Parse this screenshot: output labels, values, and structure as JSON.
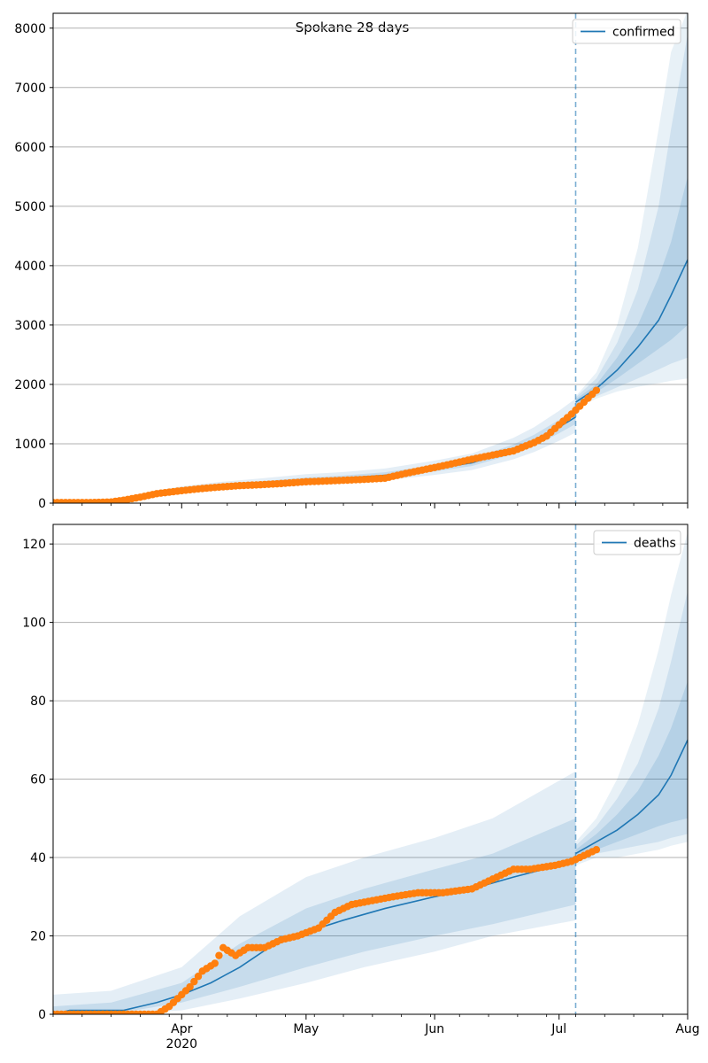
{
  "figure": {
    "title": "Spokane 28 days",
    "colors": {
      "model_line": "#1f77b4",
      "observed_points": "#ff7f0e",
      "band": "#1f77b4",
      "forecast_marker": "#1f77b4",
      "grid": "#b0b0b0"
    },
    "x_axis": {
      "range": [
        "2020-03-01",
        "2020-08-01"
      ],
      "major_ticks": [
        {
          "date": "2020-04-01",
          "label": "Apr",
          "sublabel": "2020"
        },
        {
          "date": "2020-05-01",
          "label": "May",
          "sublabel": ""
        },
        {
          "date": "2020-06-01",
          "label": "Jun",
          "sublabel": ""
        },
        {
          "date": "2020-07-01",
          "label": "Jul",
          "sublabel": ""
        },
        {
          "date": "2020-08-01",
          "label": "Aug",
          "sublabel": ""
        }
      ],
      "forecast_start": "2020-07-05"
    }
  },
  "chart_data": [
    {
      "type": "line",
      "panel": "top",
      "legend": {
        "label": "confirmed",
        "placement": "top-right"
      },
      "ylim": [
        0,
        8250
      ],
      "yticks": [
        0,
        1000,
        2000,
        3000,
        4000,
        5000,
        6000,
        7000,
        8000
      ],
      "grid": "y",
      "fit": {
        "dates": [
          "2020-03-01",
          "2020-03-10",
          "2020-03-15",
          "2020-03-20",
          "2020-03-25",
          "2020-04-01",
          "2020-04-10",
          "2020-04-20",
          "2020-05-01",
          "2020-05-10",
          "2020-05-20",
          "2020-06-01",
          "2020-06-10",
          "2020-06-20",
          "2020-06-25",
          "2020-07-01",
          "2020-07-05"
        ],
        "values": [
          0,
          5,
          20,
          60,
          150,
          220,
          280,
          330,
          390,
          420,
          470,
          580,
          680,
          900,
          1050,
          1280,
          1450
        ]
      },
      "forecast": {
        "dates": [
          "2020-07-05",
          "2020-07-10",
          "2020-07-15",
          "2020-07-20",
          "2020-07-25",
          "2020-07-28",
          "2020-08-01"
        ],
        "median": [
          1700,
          1930,
          2240,
          2630,
          3080,
          3500,
          4100
        ],
        "band50": [
          [
            1650,
            1870,
            2100,
            2350,
            2600,
            2750,
            3000
          ],
          [
            1750,
            2000,
            2450,
            3000,
            3800,
            4400,
            5500
          ]
        ],
        "band80": [
          [
            1620,
            1800,
            1950,
            2100,
            2250,
            2350,
            2450
          ],
          [
            1780,
            2100,
            2700,
            3600,
            5000,
            6300,
            7900
          ]
        ],
        "band95": [
          [
            1600,
            1760,
            1880,
            1960,
            2020,
            2060,
            2100
          ],
          [
            1800,
            2200,
            3000,
            4300,
            6300,
            7600,
            8300
          ]
        ]
      },
      "observed": {
        "dates": [
          "2020-03-01",
          "2020-03-10",
          "2020-03-15",
          "2020-03-18",
          "2020-03-22",
          "2020-03-26",
          "2020-04-01",
          "2020-04-05",
          "2020-04-10",
          "2020-04-15",
          "2020-04-20",
          "2020-04-25",
          "2020-05-01",
          "2020-05-05",
          "2020-05-10",
          "2020-05-15",
          "2020-05-20",
          "2020-05-25",
          "2020-06-01",
          "2020-06-05",
          "2020-06-10",
          "2020-06-15",
          "2020-06-20",
          "2020-06-25",
          "2020-06-28",
          "2020-07-01",
          "2020-07-04",
          "2020-07-07",
          "2020-07-10"
        ],
        "values": [
          10,
          10,
          20,
          50,
          100,
          160,
          210,
          240,
          270,
          295,
          310,
          330,
          360,
          370,
          385,
          400,
          420,
          500,
          600,
          660,
          740,
          810,
          880,
          1020,
          1130,
          1320,
          1500,
          1700,
          1900
        ]
      }
    },
    {
      "type": "line",
      "panel": "bottom",
      "legend": {
        "label": "deaths",
        "placement": "top-right"
      },
      "ylim": [
        0,
        125
      ],
      "yticks": [
        0,
        20,
        40,
        60,
        80,
        100,
        120
      ],
      "grid": "y",
      "fit": {
        "dates": [
          "2020-03-01",
          "2020-03-05",
          "2020-03-18",
          "2020-03-22",
          "2020-03-26",
          "2020-04-01",
          "2020-04-08",
          "2020-04-15",
          "2020-04-22",
          "2020-05-01",
          "2020-05-10",
          "2020-05-20",
          "2020-06-01",
          "2020-06-10",
          "2020-06-20",
          "2020-07-01",
          "2020-07-05"
        ],
        "values": [
          0,
          1,
          1,
          2,
          3,
          5,
          8,
          12,
          17,
          21,
          24,
          27,
          30,
          32,
          35,
          38,
          40
        ]
      },
      "forecast": {
        "dates": [
          "2020-07-05",
          "2020-07-10",
          "2020-07-15",
          "2020-07-20",
          "2020-07-25",
          "2020-07-28",
          "2020-08-01"
        ],
        "median": [
          41,
          44,
          47,
          51,
          56,
          61,
          70
        ],
        "band50": [
          [
            40,
            42,
            44,
            46,
            48,
            49,
            50
          ],
          [
            42,
            46,
            51,
            57,
            66,
            73,
            85
          ]
        ],
        "band80": [
          [
            39,
            41,
            42,
            43,
            44,
            45,
            46
          ],
          [
            43,
            48,
            55,
            64,
            78,
            90,
            108
          ]
        ],
        "band95": [
          [
            38,
            40,
            40,
            41,
            42,
            43,
            44
          ],
          [
            44,
            50,
            60,
            74,
            93,
            107,
            123
          ]
        ]
      },
      "fit_bands": {
        "dates": [
          "2020-03-01",
          "2020-03-15",
          "2020-04-01",
          "2020-04-15",
          "2020-05-01",
          "2020-05-15",
          "2020-06-01",
          "2020-06-15",
          "2020-07-05"
        ],
        "band50": [
          [
            0,
            0,
            3,
            7,
            12,
            16,
            20,
            23,
            28
          ],
          [
            2,
            3,
            8,
            18,
            27,
            32,
            37,
            41,
            50
          ]
        ],
        "band95": [
          [
            0,
            0,
            1,
            4,
            8,
            12,
            16,
            20,
            24
          ],
          [
            5,
            6,
            12,
            25,
            35,
            40,
            45,
            50,
            62
          ]
        ]
      },
      "observed": {
        "dates": [
          "2020-03-01",
          "2020-03-10",
          "2020-03-20",
          "2020-03-26",
          "2020-03-29",
          "2020-04-01",
          "2020-04-03",
          "2020-04-06",
          "2020-04-09",
          "2020-04-11",
          "2020-04-14",
          "2020-04-17",
          "2020-04-21",
          "2020-04-25",
          "2020-04-29",
          "2020-05-04",
          "2020-05-08",
          "2020-05-12",
          "2020-05-17",
          "2020-05-22",
          "2020-05-28",
          "2020-06-03",
          "2020-06-10",
          "2020-06-16",
          "2020-06-20",
          "2020-06-24",
          "2020-06-30",
          "2020-07-04",
          "2020-07-08",
          "2020-07-10"
        ],
        "values": [
          0,
          0,
          0,
          0,
          2,
          5,
          7,
          11,
          13,
          17,
          15,
          17,
          17,
          19,
          20,
          22,
          26,
          28,
          29,
          30,
          31,
          31,
          32,
          35,
          37,
          37,
          38,
          39,
          41,
          42
        ]
      }
    }
  ]
}
